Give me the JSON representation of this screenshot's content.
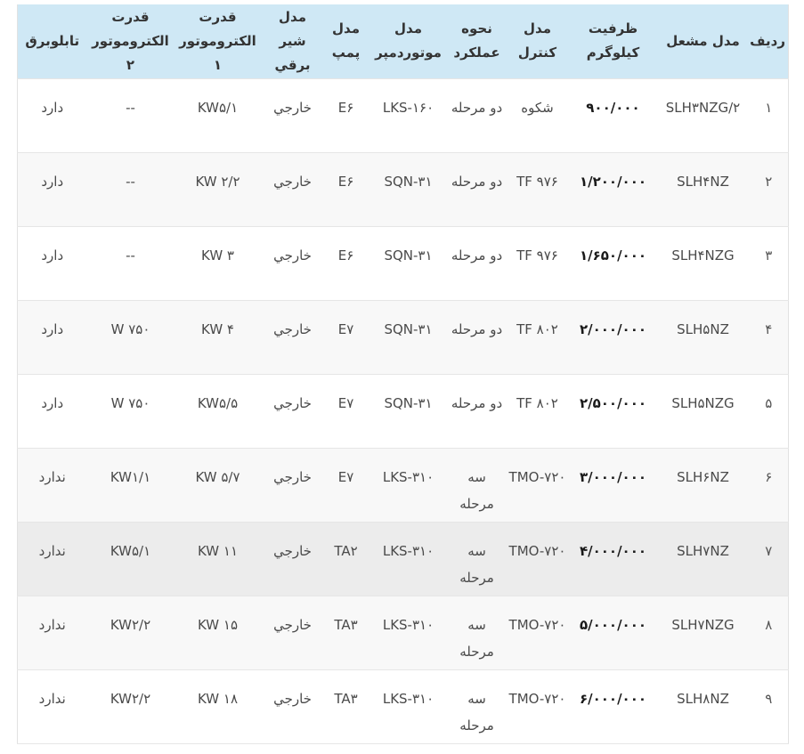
{
  "colors": {
    "header_bg": "#cfe8f5",
    "row_alt_bg": "#f8f8f8",
    "row_highlight_bg": "#ececec",
    "border": "#e6e6e6",
    "header_text": "#333333",
    "body_text": "#4a4a4a"
  },
  "table": {
    "columns": [
      {
        "id": "radif",
        "label": "ردیف",
        "dir": "rtl",
        "bold": false
      },
      {
        "id": "burner-model",
        "label": "مدل مشعل",
        "dir": "ltr",
        "bold": false
      },
      {
        "id": "capacity-kg",
        "label": "ظرفیت کیلوگرم",
        "dir": "ltr",
        "bold": true
      },
      {
        "id": "control-model",
        "label": "مدل کنترل",
        "dir": "ltr",
        "bold": false
      },
      {
        "id": "operation-mode",
        "label": "نحوه عملکرد",
        "dir": "rtl",
        "bold": false
      },
      {
        "id": "damper-motor-model",
        "label": "مدل موتوردمپر",
        "dir": "ltr",
        "bold": false
      },
      {
        "id": "pump-model",
        "label": "مدل پمپ",
        "dir": "ltr",
        "bold": false
      },
      {
        "id": "solenoid-valve-model",
        "label": "مدل شیر برقي",
        "dir": "rtl",
        "bold": false
      },
      {
        "id": "electromotor1-power",
        "label": "قدرت الکتروموتور ۱",
        "dir": "ltr",
        "bold": false
      },
      {
        "id": "electromotor2-power",
        "label": "قدرت الکتروموتور ۲",
        "dir": "ltr",
        "bold": false
      },
      {
        "id": "electric-panel",
        "label": "تابلوبرق",
        "dir": "rtl",
        "bold": false
      }
    ],
    "rows": [
      {
        "highlight": false,
        "cells": [
          "۱",
          "SLH۳NZG/۲",
          "۹۰۰/۰۰۰",
          "شکوه",
          "دو مرحله",
          "LKS-۱۶۰",
          "E۶",
          "خارجي",
          "KW۵/۱",
          "--",
          "دارد"
        ]
      },
      {
        "highlight": false,
        "cells": [
          "۲",
          "SLH۴NZ",
          "۱/۲۰۰/۰۰۰",
          "TF ۹۷۶",
          "دو مرحله",
          "SQN-۳۱",
          "E۶",
          "خارجي",
          "KW ۲/۲",
          "--",
          "دارد"
        ]
      },
      {
        "highlight": false,
        "cells": [
          "۳",
          "SLH۴NZG",
          "۱/۶۵۰/۰۰۰",
          "TF ۹۷۶",
          "دو مرحله",
          "SQN-۳۱",
          "E۶",
          "خارجي",
          "KW ۳",
          "--",
          "دارد"
        ]
      },
      {
        "highlight": false,
        "cells": [
          "۴",
          "SLH۵NZ",
          "۲/۰۰۰/۰۰۰",
          "TF ۸۰۲",
          "دو مرحله",
          "SQN-۳۱",
          "E۷",
          "خارجي",
          "KW ۴",
          "W ۷۵۰",
          "دارد"
        ]
      },
      {
        "highlight": false,
        "cells": [
          "۵",
          "SLH۵NZG",
          "۲/۵۰۰/۰۰۰",
          "TF ۸۰۲",
          "دو مرحله",
          "SQN-۳۱",
          "E۷",
          "خارجي",
          "KW۵/۵",
          "W ۷۵۰",
          "دارد"
        ]
      },
      {
        "highlight": false,
        "cells": [
          "۶",
          "SLH۶NZ",
          "۳/۰۰۰/۰۰۰",
          "TMO-۷۲۰",
          "سه مرحله",
          "LKS-۳۱۰",
          "E۷",
          "خارجي",
          "KW ۵/۷",
          "KW۱/۱",
          "ندارد"
        ]
      },
      {
        "highlight": true,
        "cells": [
          "۷",
          "SLH۷NZ",
          "۴/۰۰۰/۰۰۰",
          "TMO-۷۲۰",
          "سه مرحله",
          "LKS-۳۱۰",
          "TA۲",
          "خارجي",
          "KW ۱۱",
          "KW۵/۱",
          "ندارد"
        ]
      },
      {
        "highlight": false,
        "cells": [
          "۸",
          "SLH۷NZG",
          "۵/۰۰۰/۰۰۰",
          "TMO-۷۲۰",
          "سه مرحله",
          "LKS-۳۱۰",
          "TA۳",
          "خارجي",
          "KW ۱۵",
          "KW۲/۲",
          "ندارد"
        ]
      },
      {
        "highlight": false,
        "cells": [
          "۹",
          "SLH۸NZ",
          "۶/۰۰۰/۰۰۰",
          "TMO-۷۲۰",
          "سه مرحله",
          "LKS-۳۱۰",
          "TA۳",
          "خارجي",
          "KW ۱۸",
          "KW۲/۲",
          "ندارد"
        ]
      }
    ]
  }
}
